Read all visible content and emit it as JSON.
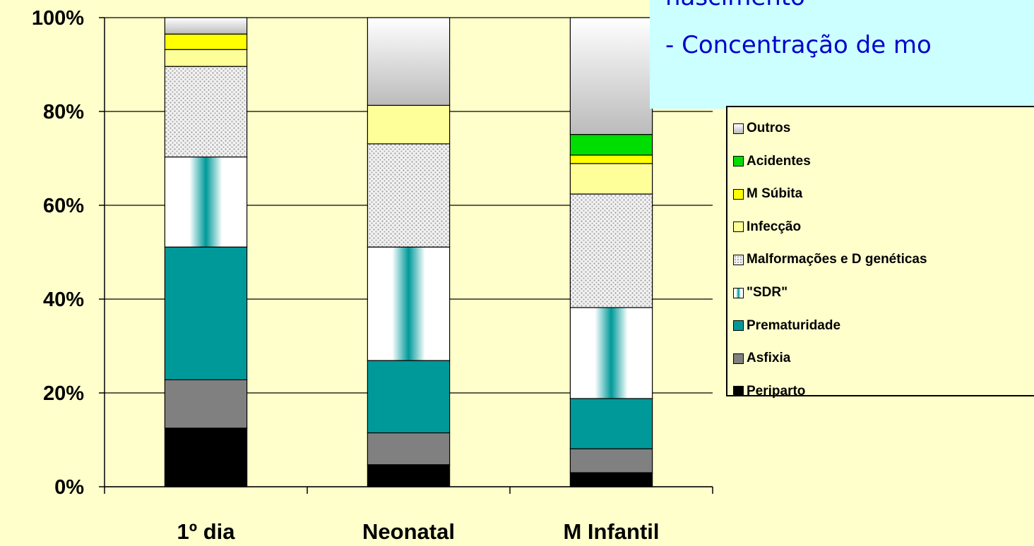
{
  "chart_data": {
    "type": "bar",
    "stacked": true,
    "percent_stacked": true,
    "categories": [
      "1º dia",
      "Neonatal",
      "M Infantil"
    ],
    "y_ticks": [
      "0%",
      "20%",
      "40%",
      "60%",
      "80%",
      "100%"
    ],
    "ylim": [
      0,
      100
    ],
    "grid": true,
    "legend_position": "right",
    "series": [
      {
        "name": "Periparto",
        "values": [
          12.5,
          4.7,
          3.0
        ],
        "color": "#000000",
        "pattern": "solid"
      },
      {
        "name": "Asfixia",
        "values": [
          10.3,
          6.8,
          5.1
        ],
        "color": "#808080",
        "pattern": "solid"
      },
      {
        "name": "Prematuridade",
        "values": [
          28.3,
          15.4,
          10.7
        ],
        "color": "#009999",
        "pattern": "solid"
      },
      {
        "name": "\"SDR\"",
        "values": [
          19.2,
          24.2,
          19.4
        ],
        "color": "#009999",
        "pattern": "vertical-gradient"
      },
      {
        "name": "Malformações e D genéticas",
        "values": [
          19.3,
          22.0,
          24.2
        ],
        "color": "#C0C0C0",
        "pattern": "dots"
      },
      {
        "name": "Infecção",
        "values": [
          3.6,
          8.2,
          6.5
        ],
        "color": "#FFFF99",
        "pattern": "solid"
      },
      {
        "name": "M Súbita",
        "values": [
          3.3,
          0,
          1.8
        ],
        "color": "#FFFF00",
        "pattern": "solid"
      },
      {
        "name": "Acidentes",
        "values": [
          0,
          0,
          4.4
        ],
        "color": "#00DD00",
        "pattern": "solid"
      },
      {
        "name": "Outros",
        "values": [
          3.5,
          18.7,
          24.9
        ],
        "color": "#E8E8E8",
        "pattern": "vertical-gradient-gray"
      }
    ]
  },
  "callout": {
    "line1": "nascimento",
    "line2": "- Concentração de mo"
  },
  "colors": {
    "background": "#FFFFCC",
    "callout_background": "#CCFFFF",
    "callout_text": "#0000CC"
  }
}
